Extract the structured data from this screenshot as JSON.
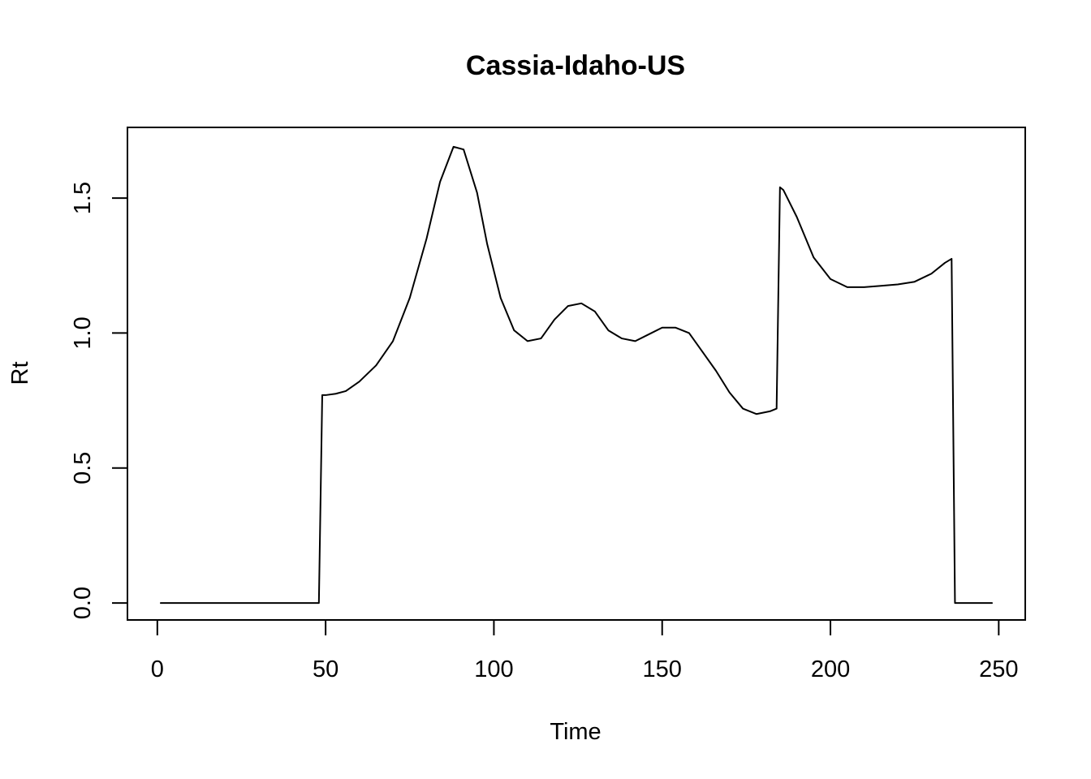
{
  "chart_data": {
    "type": "line",
    "title": "Cassia-Idaho-US",
    "xlabel": "Time",
    "ylabel": "Rt",
    "xlim": [
      0,
      250
    ],
    "ylim": [
      0,
      1.7
    ],
    "xticks": [
      0,
      50,
      100,
      150,
      200,
      250
    ],
    "yticks": [
      0.0,
      0.5,
      1.0,
      1.5
    ],
    "xtick_labels": [
      "0",
      "50",
      "100",
      "150",
      "200",
      "250"
    ],
    "ytick_labels": [
      "0.0",
      "0.5",
      "1.0",
      "1.5"
    ],
    "grid": false,
    "legend": "none",
    "line_color": "#000000",
    "series": [
      {
        "x": [
          1,
          10,
          20,
          30,
          40,
          48,
          49,
          50,
          53,
          56,
          60,
          65,
          70,
          75,
          80,
          84,
          88,
          91,
          95,
          98,
          102,
          106,
          110,
          114,
          118,
          122,
          126,
          130,
          134,
          138,
          142,
          146,
          150,
          154,
          158,
          162,
          166,
          170,
          174,
          178,
          182,
          184,
          185,
          186,
          190,
          195,
          200,
          205,
          210,
          215,
          220,
          225,
          230,
          234,
          236,
          237,
          240,
          248
        ],
        "y": [
          0,
          0,
          0,
          0,
          0,
          0,
          0.77,
          0.77,
          0.775,
          0.785,
          0.82,
          0.88,
          0.97,
          1.13,
          1.35,
          1.56,
          1.69,
          1.68,
          1.52,
          1.33,
          1.13,
          1.01,
          0.97,
          0.98,
          1.05,
          1.1,
          1.11,
          1.08,
          1.01,
          0.98,
          0.97,
          0.995,
          1.02,
          1.02,
          1.0,
          0.93,
          0.86,
          0.78,
          0.72,
          0.7,
          0.71,
          0.72,
          1.54,
          1.53,
          1.43,
          1.28,
          1.2,
          1.17,
          1.17,
          1.175,
          1.18,
          1.19,
          1.22,
          1.26,
          1.275,
          0,
          0,
          0
        ]
      }
    ]
  }
}
